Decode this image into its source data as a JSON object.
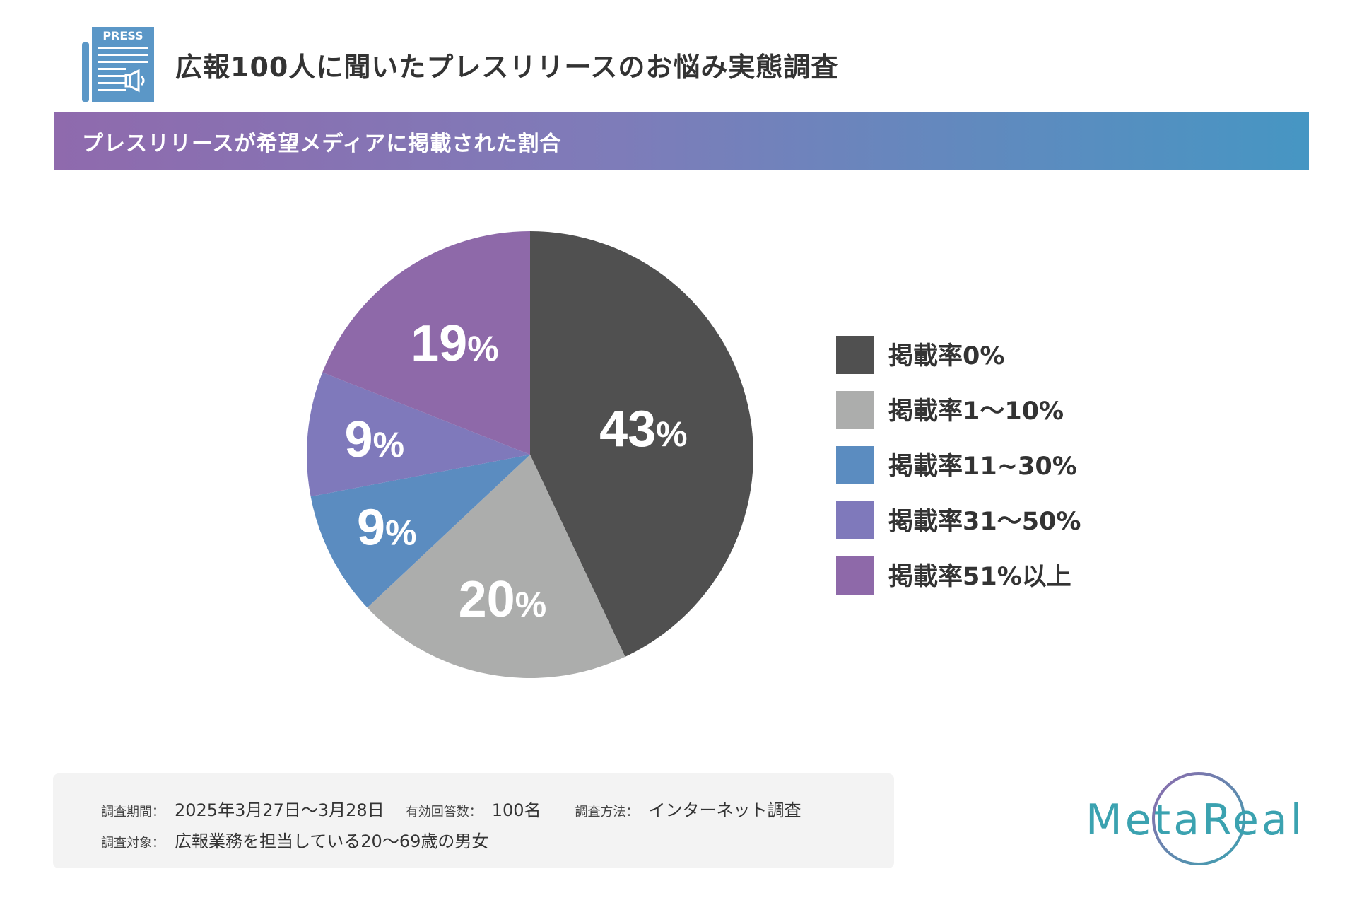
{
  "header": {
    "icon_label": "PRESS",
    "title": "広報100人に聞いたプレスリリースのお悩み実態調査"
  },
  "banner": {
    "subtitle": "プレスリリースが希望メディアに掲載された割合"
  },
  "chart_data": {
    "type": "pie",
    "title": "プレスリリースが希望メディアに掲載された割合",
    "categories": [
      "掲載率0%",
      "掲載率1〜10%",
      "掲載率11~30%",
      "掲載率31〜50%",
      "掲載率51%以上"
    ],
    "values": [
      43,
      20,
      9,
      9,
      19
    ],
    "label_numbers": [
      "43",
      "20",
      "9",
      "9",
      "19"
    ],
    "label_suffix": "%",
    "colors": [
      "#505050",
      "#acadac",
      "#5b8cc0",
      "#7f79bb",
      "#8e69a9"
    ],
    "start": "12 o'clock",
    "direction": "clockwise",
    "legend_position": "right"
  },
  "footer": {
    "period_label": "調査期間：",
    "period_value": "2025年3月27日〜3月28日",
    "responses_label": "有効回答数：",
    "responses_value": "100名",
    "method_label": "調査方法：",
    "method_value": "インターネット調査",
    "target_label": "調査対象：",
    "target_value": "広報業務を担当している20〜69歳の男女"
  },
  "logo": {
    "text": "MetaReal",
    "colors": [
      "#8f6aad",
      "#3ba2b0"
    ]
  }
}
